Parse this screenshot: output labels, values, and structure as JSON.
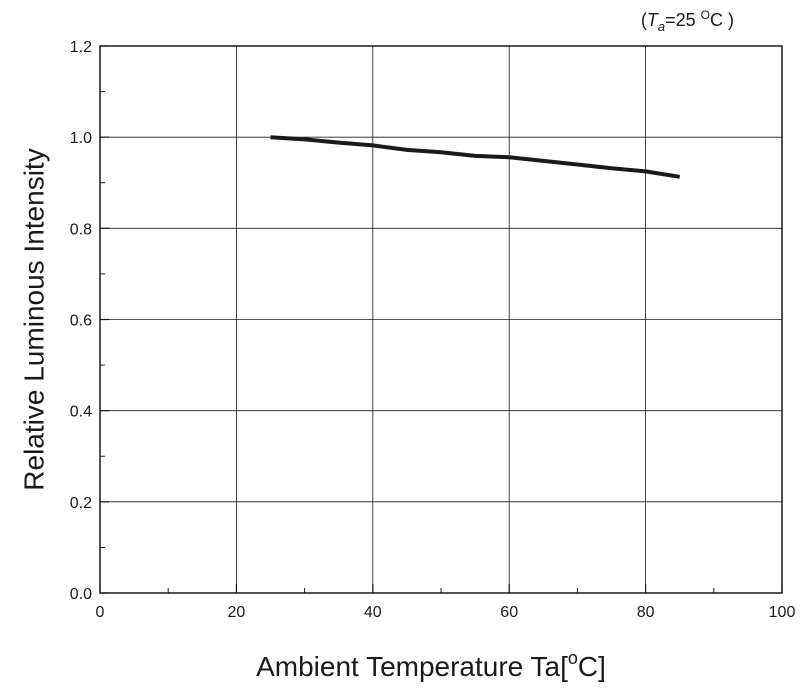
{
  "chart_data": {
    "type": "line",
    "title": "",
    "annotation": {
      "open": "(",
      "symbol": "T",
      "subscript": "a",
      "equals_value": "=25 ",
      "degree": "O",
      "unit": "C )"
    },
    "xlabel": {
      "text": "Ambient Temperature Ta[",
      "degree": "o",
      "unit": "C]"
    },
    "ylabel": "Relative Luminous Intensity",
    "xlim": [
      0,
      100
    ],
    "ylim": [
      0,
      1.2
    ],
    "x_ticks": [
      0,
      20,
      40,
      60,
      80,
      100
    ],
    "x_tick_labels": [
      "0",
      "20",
      "40",
      "60",
      "80",
      "100"
    ],
    "y_ticks": [
      0,
      0.2,
      0.4,
      0.6,
      0.8,
      1.0,
      1.2
    ],
    "y_tick_labels": [
      "0.0",
      "0.2",
      "0.4",
      "0.6",
      "0.8",
      "1.0",
      "1.2"
    ],
    "x_minor_ticks": [
      10,
      30,
      50,
      70,
      90
    ],
    "y_minor_ticks": [
      0.1,
      0.3,
      0.5,
      0.7,
      0.9,
      1.1
    ],
    "grid": true,
    "line_color": "#1a1a1a",
    "series": [
      {
        "x": [
          25,
          30,
          35,
          40,
          45,
          50,
          55,
          60,
          65,
          70,
          75,
          80,
          85
        ],
        "y": [
          1.0,
          0.995,
          0.988,
          0.982,
          0.972,
          0.967,
          0.959,
          0.956,
          0.948,
          0.94,
          0.932,
          0.925,
          0.913
        ]
      }
    ]
  }
}
